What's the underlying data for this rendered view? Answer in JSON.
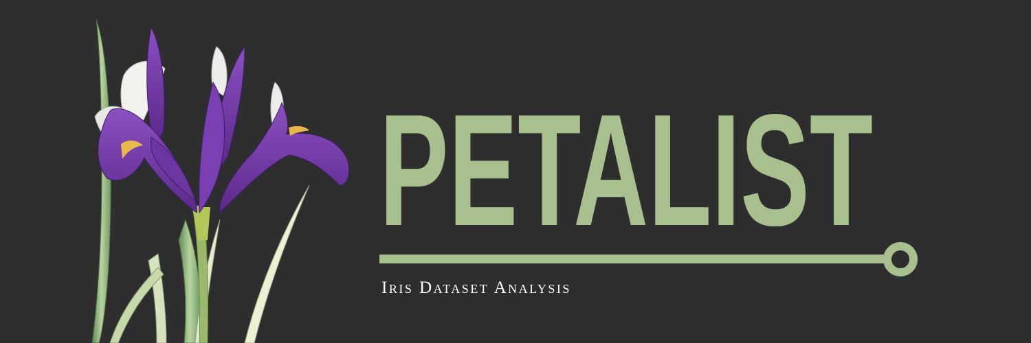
{
  "banner": {
    "title": "PETALIST",
    "subtitle": "Iris Dataset Analysis",
    "accent_color": "#a8c08e",
    "background_color": "#2e2e2e",
    "illustration": "iris-flower-illustration"
  }
}
